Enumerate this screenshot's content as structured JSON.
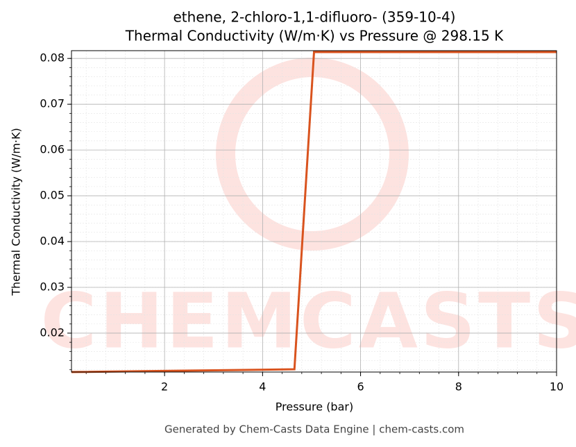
{
  "chart_data": {
    "type": "line",
    "title": "ethene, 2-chloro-1,1-difluoro- (359-10-4)",
    "subtitle": "Thermal Conductivity (W/m·K) vs Pressure @ 298.15 K",
    "x_label": "Pressure (bar)",
    "y_label": "Thermal Conductivity (W/m·K)",
    "x": [
      0.1,
      4.65,
      5.05,
      10
    ],
    "series": [
      {
        "name": "Thermal Conductivity",
        "color": "#d9531e",
        "values": [
          0.0115,
          0.0121,
          0.0814,
          0.0814
        ]
      }
    ],
    "xlim": [
      0.1,
      10
    ],
    "ylim": [
      0.0115,
      0.0817
    ],
    "xticks": [
      2,
      4,
      6,
      8,
      10
    ],
    "yticks": [
      0.02,
      0.03,
      0.04,
      0.05,
      0.06,
      0.07,
      0.08
    ],
    "grid": true,
    "watermark": "CHEMCASTS",
    "footer": "Generated by Chem-Casts Data Engine | chem-casts.com"
  }
}
